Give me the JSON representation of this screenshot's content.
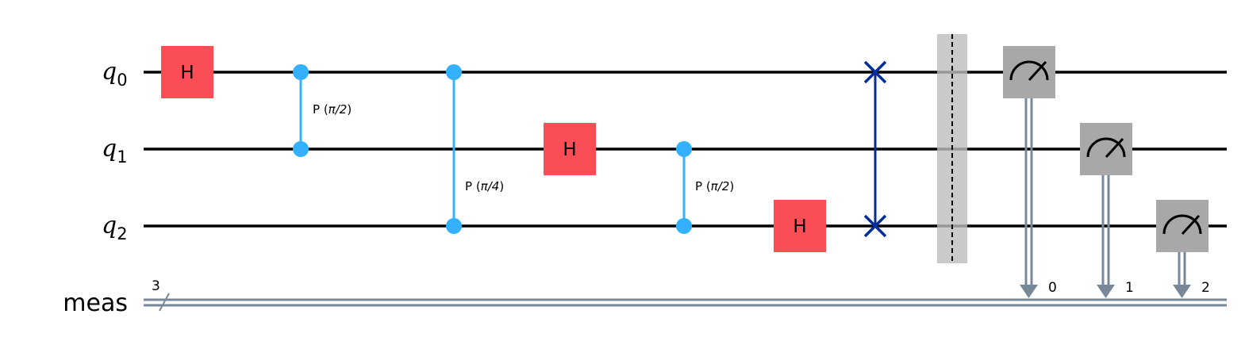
{
  "qubits": [
    {
      "name": "q",
      "index": "0"
    },
    {
      "name": "q",
      "index": "1"
    },
    {
      "name": "q",
      "index": "2"
    }
  ],
  "classical_register": {
    "name": "meas",
    "width_label": "3",
    "bits": [
      "0",
      "1",
      "2"
    ]
  },
  "gates": {
    "h_label": "H",
    "cp1": {
      "prefix": "P (",
      "param": "π/2",
      "suffix": ")"
    },
    "cp2": {
      "prefix": "P (",
      "param": "π/4",
      "suffix": ")"
    },
    "cp3": {
      "prefix": "P (",
      "param": "π/2",
      "suffix": ")"
    }
  },
  "colors": {
    "wire": "#000000",
    "classical_wire": "#778899",
    "h_gate": "#FA4D56",
    "controlled_phase": "#33B1FF",
    "swap": "#002D9C",
    "barrier": "#BDBDBD",
    "measure": "#A8A8A8"
  },
  "icons": {
    "measure": "meter-gauge-icon",
    "swap": "x-cross-icon",
    "bit_count": "slash-icon"
  }
}
